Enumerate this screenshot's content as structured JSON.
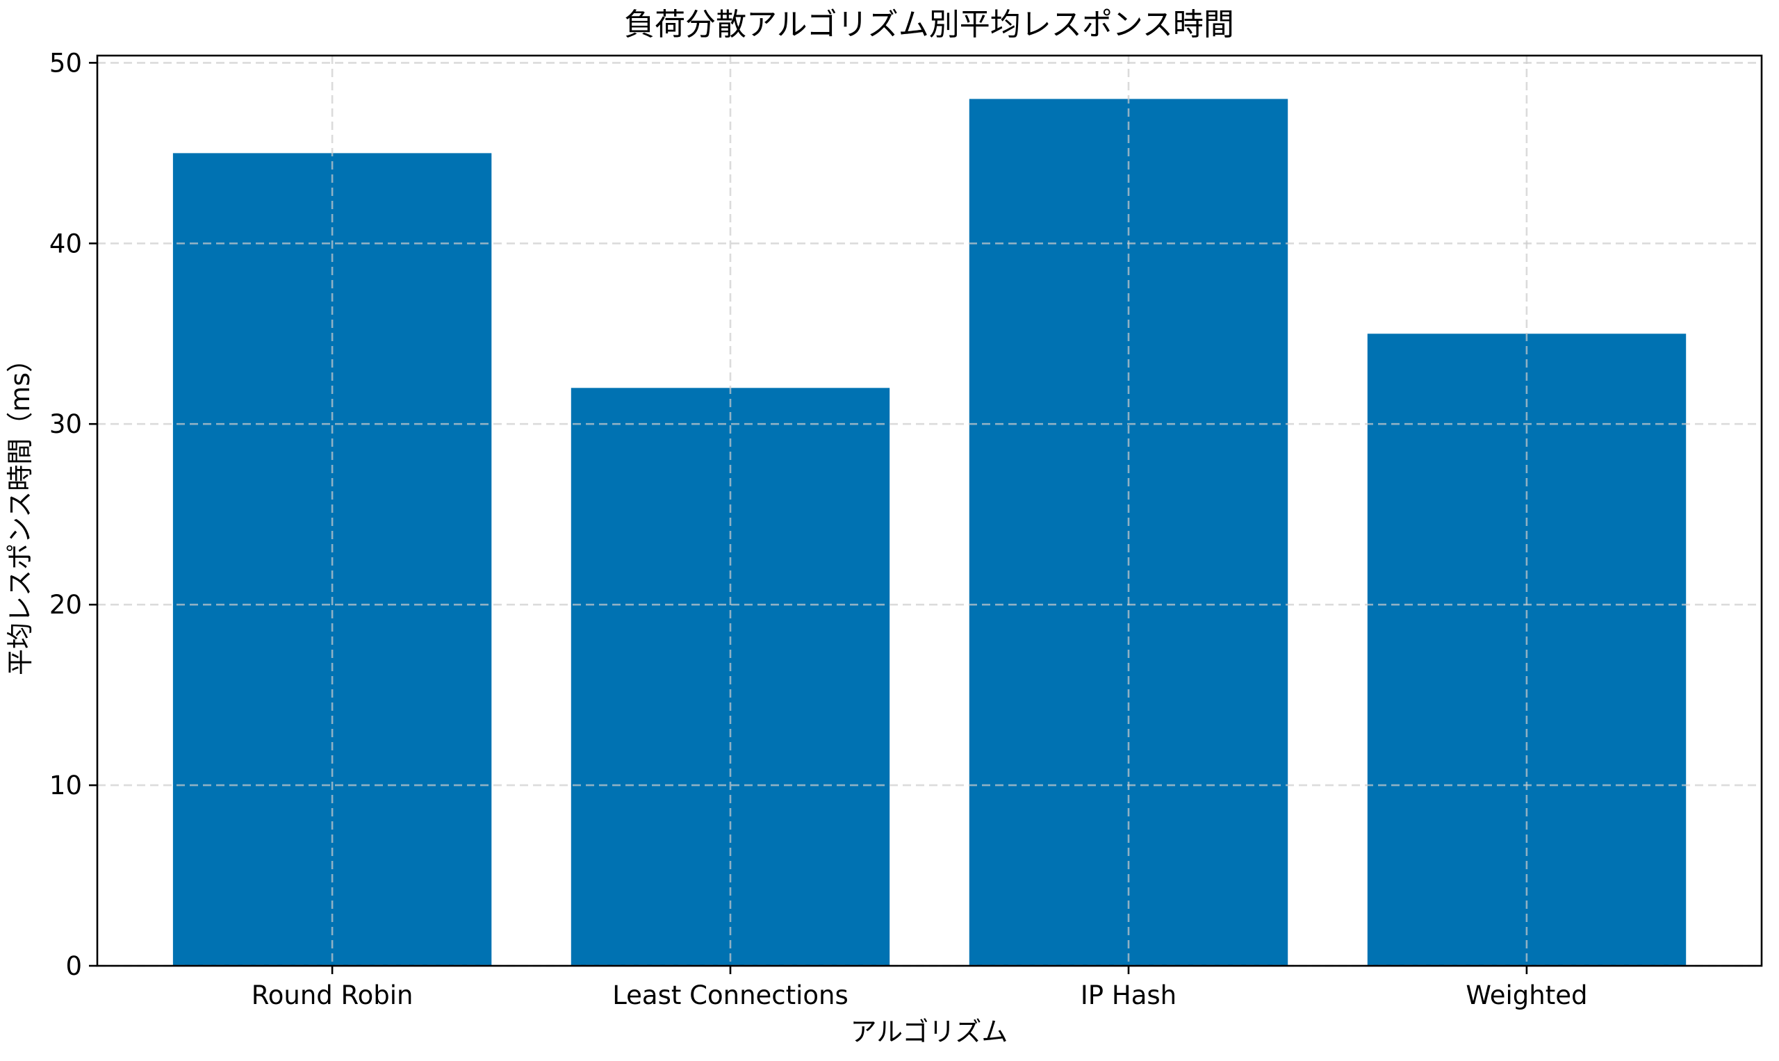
{
  "figure": {
    "background": "#ffffff"
  },
  "chart_data": {
    "type": "bar",
    "title": "負荷分散アルゴリズム別平均レスポンス時間",
    "xlabel": "アルゴリズム",
    "ylabel": "平均レスポンス時間（ms）",
    "categories": [
      "Round Robin",
      "Least Connections",
      "IP Hash",
      "Weighted"
    ],
    "values": [
      45,
      32,
      48,
      35
    ],
    "yticks": [
      0,
      10,
      20,
      30,
      40,
      50
    ],
    "ylim": [
      0,
      50.4
    ],
    "bar_color": "#0072b2",
    "bar_width_fraction": 0.8,
    "grid": true,
    "grid_style": "dashed",
    "grid_color": "#cccccc",
    "grid_on_top_of_bars": true,
    "spine_color": "#000000",
    "text_color": "#000000",
    "legend": "none"
  }
}
